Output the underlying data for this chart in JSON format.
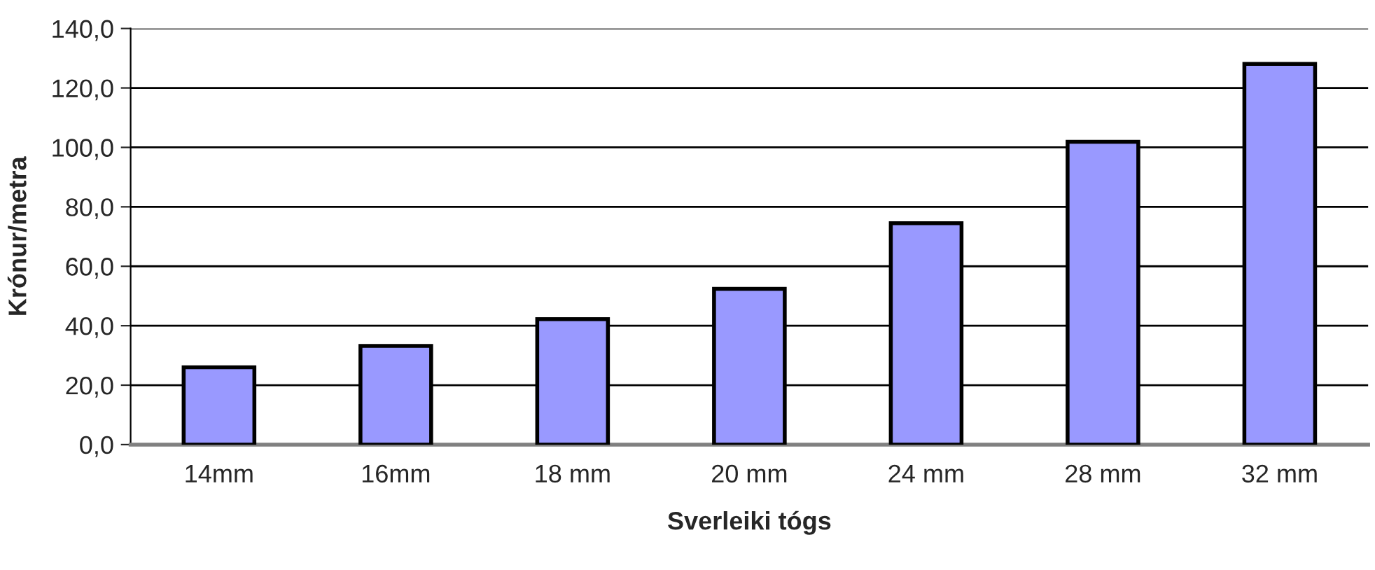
{
  "chart_data": {
    "type": "bar",
    "xlabel": "Sverleiki tógs",
    "ylabel": "Krónur/metra",
    "categories": [
      "14mm",
      "16mm",
      "18 mm",
      "20 mm",
      "24 mm",
      "28 mm",
      "32 mm"
    ],
    "values": [
      26.0,
      33.2,
      42.2,
      52.4,
      74.5,
      101.9,
      128.1
    ],
    "color": "#9999ff",
    "ylim": [
      0,
      140
    ],
    "yticks": [
      {
        "value": 0,
        "label": "0,0"
      },
      {
        "value": 20,
        "label": "20,0"
      },
      {
        "value": 40,
        "label": "40,0"
      },
      {
        "value": 60,
        "label": "60,0"
      },
      {
        "value": 80,
        "label": "80,0"
      },
      {
        "value": 100,
        "label": "100,0"
      },
      {
        "value": 120,
        "label": "120,0"
      },
      {
        "value": 140,
        "label": "140,0"
      }
    ],
    "grid": "y"
  }
}
